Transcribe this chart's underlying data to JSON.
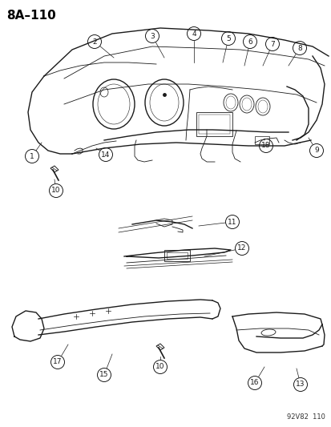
{
  "title": "8A–110",
  "watermark": "92V82  110",
  "bg_color": "#ffffff",
  "line_color": "#1a1a1a",
  "label_color": "#000000",
  "fig_width": 4.14,
  "fig_height": 5.33,
  "dpi": 100,
  "font_size_title": 11,
  "font_size_label": 6.5
}
